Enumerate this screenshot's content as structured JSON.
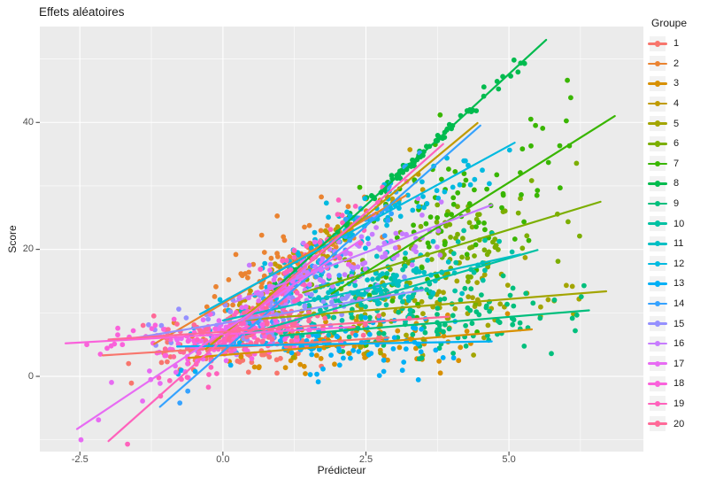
{
  "title": "Effets aléatoires",
  "colors": {
    "panel_bg": "#EBEBEB",
    "grid": "#FFFFFF",
    "tick_mark": "#333333",
    "tick_label": "#4D4D4D",
    "text": "#1A1A1A",
    "legend_key_bg": "#F2F2F2",
    "plot_bg": "#FFFFFF"
  },
  "axes": {
    "x": {
      "label": "Prédicteur",
      "lim": [
        -3.2,
        7.35
      ],
      "major_ticks": [
        {
          "v": -2.5,
          "label": "-2.5"
        },
        {
          "v": 0,
          "label": "0.0"
        },
        {
          "v": 2.5,
          "label": "2.5"
        },
        {
          "v": 5,
          "label": "5.0"
        }
      ],
      "minor_ticks": [
        -1.25,
        1.25,
        3.75,
        6.25
      ]
    },
    "y": {
      "label": "Score",
      "lim": [
        -11.85,
        55.1
      ],
      "major_ticks": [
        {
          "v": 0,
          "label": "0"
        },
        {
          "v": 20,
          "label": "20"
        },
        {
          "v": 40,
          "label": "40"
        }
      ],
      "minor_ticks": [
        -10,
        10,
        30,
        50
      ]
    }
  },
  "legend": {
    "title": "Groupe",
    "entries": [
      {
        "label": "1",
        "color": "#F8766D"
      },
      {
        "label": "2",
        "color": "#EA8331"
      },
      {
        "label": "3",
        "color": "#D89000"
      },
      {
        "label": "4",
        "color": "#C09B00"
      },
      {
        "label": "5",
        "color": "#A3A500"
      },
      {
        "label": "6",
        "color": "#7CAE00"
      },
      {
        "label": "7",
        "color": "#39B600"
      },
      {
        "label": "8",
        "color": "#00BB4E"
      },
      {
        "label": "9",
        "color": "#00BF7D"
      },
      {
        "label": "10",
        "color": "#00C1A3"
      },
      {
        "label": "11",
        "color": "#00BFC4"
      },
      {
        "label": "12",
        "color": "#00BAE0"
      },
      {
        "label": "13",
        "color": "#00B0F6"
      },
      {
        "label": "14",
        "color": "#35A2FF"
      },
      {
        "label": "15",
        "color": "#9590FF"
      },
      {
        "label": "16",
        "color": "#C77CFF"
      },
      {
        "label": "17",
        "color": "#E76BF3"
      },
      {
        "label": "18",
        "color": "#FA62DB"
      },
      {
        "label": "19",
        "color": "#FF62BC"
      },
      {
        "label": "20",
        "color": "#FF6A98"
      }
    ]
  },
  "chart_data": {
    "type": "scatter",
    "title": "Effets aléatoires",
    "xlabel": "Prédicteur",
    "ylabel": "Score",
    "xlim": [
      -3.2,
      7.35
    ],
    "ylim": [
      -11.85,
      55.1
    ],
    "grid": true,
    "legend_position": "right",
    "n_groups": 20,
    "description": "Simulated multilevel data: per-group scatter of Score vs Prédicteur with a fitted regression line per group (random intercepts and slopes). Lines given as [x1,y1,x2,y2]; point clouds described by generative model read off the plot.",
    "series": [
      {
        "name": "1",
        "color": "#F8766D",
        "line": [
          -2.1,
          3.3,
          2.9,
          6.1
        ],
        "model": {
          "n": 90,
          "x_mean": 0.4,
          "x_sd": 1.0,
          "intercept": 4.5,
          "slope": 0.55,
          "resid_sd": 1.7
        }
      },
      {
        "name": "2",
        "color": "#EA8331",
        "line": [
          -1.2,
          5.1,
          3.2,
          28.5
        ],
        "model": {
          "n": 95,
          "x_mean": 1.0,
          "x_sd": 0.85,
          "intercept": 11.5,
          "slope": 5.3,
          "resid_sd": 3.0
        }
      },
      {
        "name": "3",
        "color": "#D89000",
        "line": [
          -0.6,
          2.9,
          5.4,
          7.4
        ],
        "model": {
          "n": 95,
          "x_mean": 2.2,
          "x_sd": 1.2,
          "intercept": 3.3,
          "slope": 0.75,
          "resid_sd": 2.2
        }
      },
      {
        "name": "4",
        "color": "#C09B00",
        "line": [
          -0.3,
          4.3,
          4.45,
          39.9
        ],
        "model": {
          "n": 85,
          "x_mean": 1.6,
          "x_sd": 0.95,
          "intercept": 6.5,
          "slope": 7.5,
          "resid_sd": 2.0
        }
      },
      {
        "name": "5",
        "color": "#A3A500",
        "line": [
          0.3,
          8.8,
          6.7,
          13.4
        ],
        "model": {
          "n": 95,
          "x_mean": 3.6,
          "x_sd": 1.25,
          "intercept": 8.6,
          "slope": 0.72,
          "resid_sd": 3.0
        }
      },
      {
        "name": "6",
        "color": "#7CAE00",
        "line": [
          1.4,
          13.2,
          6.6,
          27.5
        ],
        "model": {
          "n": 95,
          "x_mean": 3.9,
          "x_sd": 1.1,
          "intercept": 9.3,
          "slope": 2.76,
          "resid_sd": 4.0
        }
      },
      {
        "name": "7",
        "color": "#39B600",
        "line": [
          1.9,
          13.0,
          6.85,
          41.0
        ],
        "model": {
          "n": 100,
          "x_mean": 4.0,
          "x_sd": 1.05,
          "intercept": 2.2,
          "slope": 5.66,
          "resid_sd": 6.5
        }
      },
      {
        "name": "8",
        "color": "#00BB4E",
        "line": [
          0.9,
          13.7,
          5.65,
          53.0
        ],
        "model": {
          "n": 90,
          "x_mean": 3.3,
          "x_sd": 1.0,
          "intercept": 6.3,
          "slope": 8.26,
          "resid_sd": 0.55
        }
      },
      {
        "name": "9",
        "color": "#00BF7D",
        "line": [
          1.0,
          6.4,
          6.4,
          10.4
        ],
        "model": {
          "n": 95,
          "x_mean": 3.9,
          "x_sd": 1.1,
          "intercept": 5.7,
          "slope": 0.74,
          "resid_sd": 3.0
        }
      },
      {
        "name": "10",
        "color": "#00C1A3",
        "line": [
          0.4,
          6.6,
          5.5,
          19.9
        ],
        "model": {
          "n": 90,
          "x_mean": 3.0,
          "x_sd": 1.0,
          "intercept": 5.6,
          "slope": 2.6,
          "resid_sd": 2.6
        }
      },
      {
        "name": "11",
        "color": "#00BFC4",
        "line": [
          0.0,
          8.8,
          5.2,
          19.2
        ],
        "model": {
          "n": 90,
          "x_mean": 2.6,
          "x_sd": 1.0,
          "intercept": 8.8,
          "slope": 2.0,
          "resid_sd": 2.4
        }
      },
      {
        "name": "12",
        "color": "#00BAE0",
        "line": [
          -0.4,
          9.8,
          5.1,
          36.8
        ],
        "model": {
          "n": 90,
          "x_mean": 2.3,
          "x_sd": 1.1,
          "intercept": 11.8,
          "slope": 4.9,
          "resid_sd": 2.2
        }
      },
      {
        "name": "13",
        "color": "#00B0F6",
        "line": [
          -0.8,
          4.7,
          4.7,
          5.5
        ],
        "model": {
          "n": 95,
          "x_mean": 2.0,
          "x_sd": 1.1,
          "intercept": 4.8,
          "slope": 0.15,
          "resid_sd": 2.6
        }
      },
      {
        "name": "14",
        "color": "#35A2FF",
        "line": [
          -1.1,
          -4.8,
          4.5,
          39.5
        ],
        "model": {
          "n": 90,
          "x_mean": 1.5,
          "x_sd": 1.05,
          "intercept": 3.9,
          "slope": 7.9,
          "resid_sd": 2.4
        }
      },
      {
        "name": "15",
        "color": "#9590FF",
        "line": [
          -1.7,
          5.8,
          3.5,
          13.6
        ],
        "model": {
          "n": 85,
          "x_mean": 0.8,
          "x_sd": 1.0,
          "intercept": 8.3,
          "slope": 1.5,
          "resid_sd": 2.0
        }
      },
      {
        "name": "16",
        "color": "#C77CFF",
        "line": [
          0.2,
          11.7,
          4.7,
          27.0
        ],
        "model": {
          "n": 95,
          "x_mean": 2.2,
          "x_sd": 0.9,
          "intercept": 11.0,
          "slope": 3.4,
          "resid_sd": 2.6
        }
      },
      {
        "name": "17",
        "color": "#E76BF3",
        "line": [
          -2.55,
          -8.3,
          2.4,
          21.4
        ],
        "model": {
          "n": 90,
          "x_mean": 0.1,
          "x_sd": 1.0,
          "intercept": 7.0,
          "slope": 6.0,
          "resid_sd": 2.2
        }
      },
      {
        "name": "18",
        "color": "#FA62DB",
        "line": [
          -2.75,
          5.2,
          2.3,
          7.8
        ],
        "model": {
          "n": 90,
          "x_mean": -0.2,
          "x_sd": 1.0,
          "intercept": 6.6,
          "slope": 0.5,
          "resid_sd": 1.8
        }
      },
      {
        "name": "19",
        "color": "#FF62BC",
        "line": [
          -2.0,
          -10.2,
          3.85,
          36.6
        ],
        "model": {
          "n": 100,
          "x_mean": 0.8,
          "x_sd": 1.1,
          "intercept": 5.8,
          "slope": 8.0,
          "resid_sd": 2.6
        }
      },
      {
        "name": "20",
        "color": "#FF6A98",
        "line": [
          -2.0,
          5.8,
          3.95,
          9.4
        ],
        "model": {
          "n": 95,
          "x_mean": 0.7,
          "x_sd": 1.1,
          "intercept": 7.0,
          "slope": 0.6,
          "resid_sd": 2.0
        }
      }
    ]
  }
}
